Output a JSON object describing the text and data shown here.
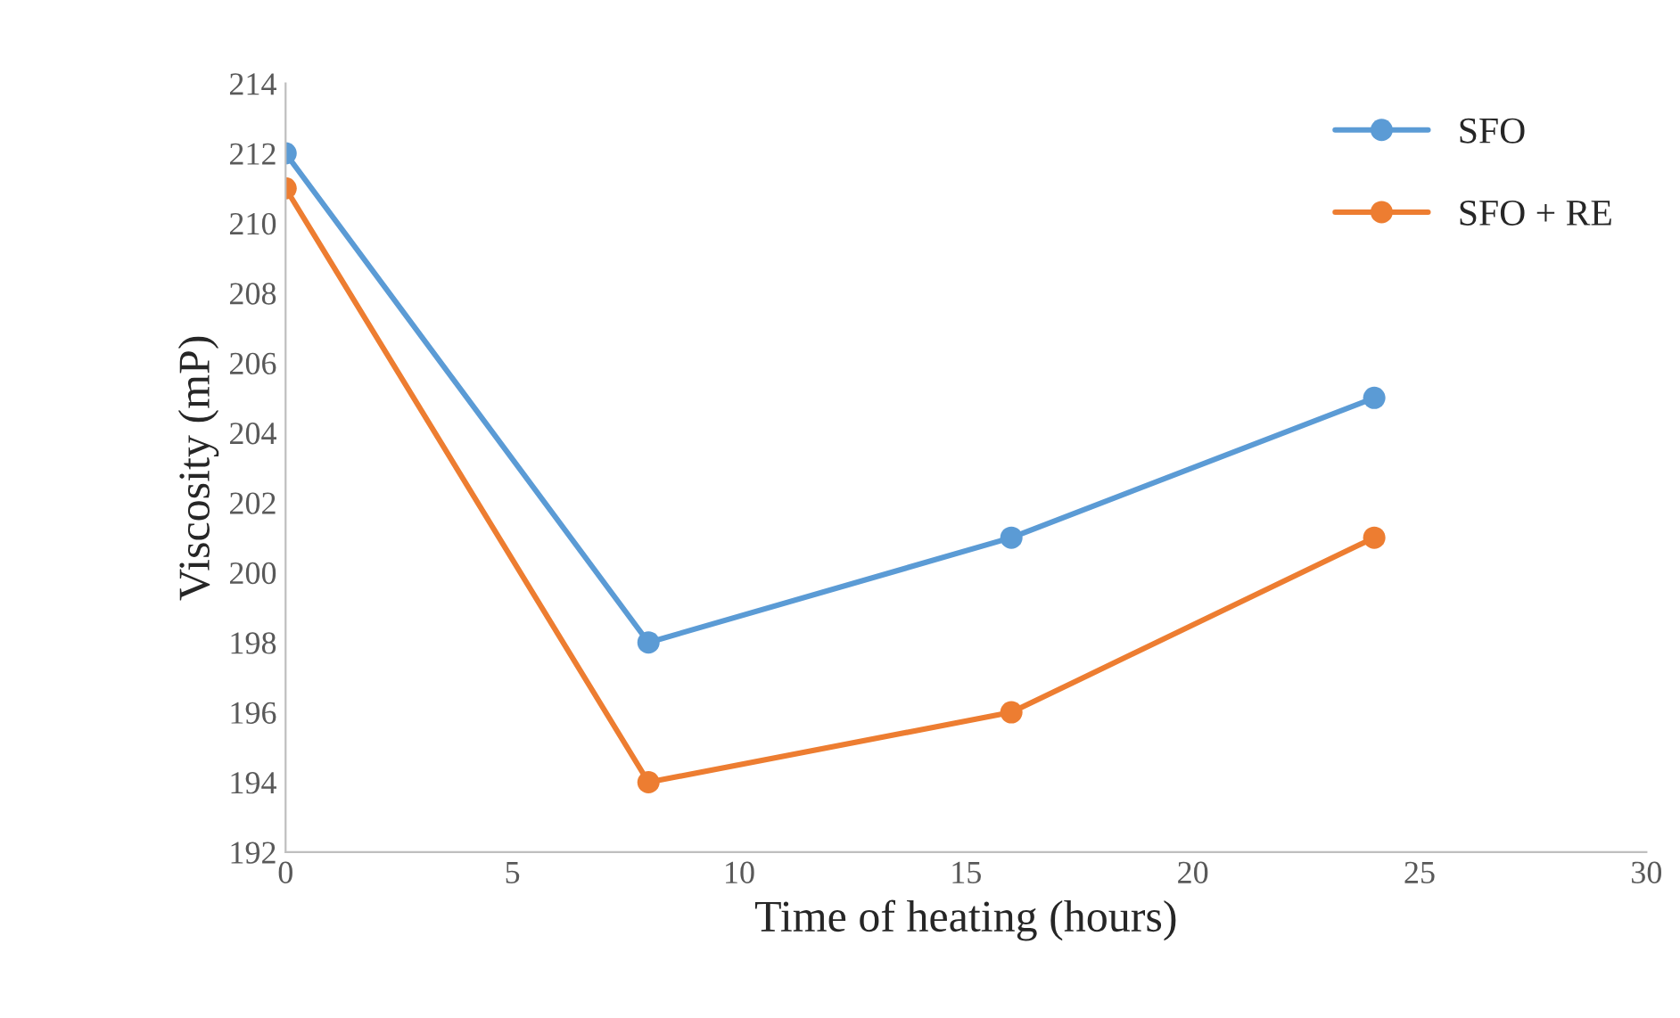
{
  "chart_data": {
    "type": "line",
    "xlabel": "Time of heating (hours)",
    "ylabel": "Viscosity (mP)",
    "series": [
      {
        "name": "SFO",
        "color": "#5b9bd5",
        "x": [
          0,
          8,
          16,
          24
        ],
        "values": [
          212,
          198,
          201,
          205
        ]
      },
      {
        "name": "SFO + RE",
        "color": "#ed7d31",
        "x": [
          0,
          8,
          16,
          24
        ],
        "values": [
          211,
          194,
          196,
          201
        ]
      }
    ],
    "xlim": [
      0,
      30
    ],
    "xticks": [
      0,
      5,
      10,
      15,
      20,
      25,
      30
    ],
    "ylim": [
      192,
      214
    ],
    "yticks": [
      192,
      194,
      196,
      198,
      200,
      202,
      204,
      206,
      208,
      210,
      212,
      214
    ],
    "grid": false,
    "legend": "top right",
    "marker": "circle",
    "line_style": "solid"
  }
}
